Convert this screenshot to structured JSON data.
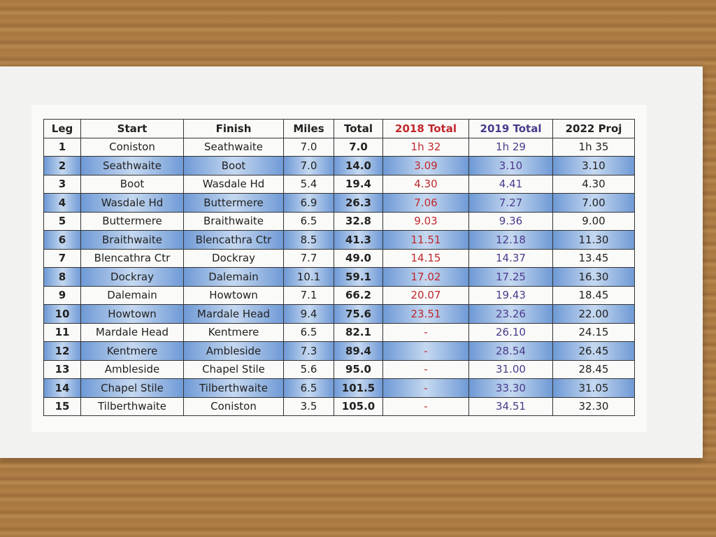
{
  "table": {
    "header": [
      "Leg",
      "Start",
      "Finish",
      "Miles",
      "Total",
      "2018 Total",
      "2019 Total",
      "2022 Proj"
    ],
    "rows": [
      [
        "1",
        "Coniston",
        "Seathwaite",
        "7.0",
        "7.0",
        "1h 32",
        "1h 29",
        "1h 35"
      ],
      [
        "2",
        "Seathwaite",
        "Boot",
        "7.0",
        "14.0",
        "3.09",
        "3.10",
        "3.10"
      ],
      [
        "3",
        "Boot",
        "Wasdale Hd",
        "5.4",
        "19.4",
        "4.30",
        "4.41",
        "4.30"
      ],
      [
        "4",
        "Wasdale Hd",
        "Buttermere",
        "6.9",
        "26.3",
        "7.06",
        "7.27",
        "7.00"
      ],
      [
        "5",
        "Buttermere",
        "Braithwaite",
        "6.5",
        "32.8",
        "9.03",
        "9.36",
        "9.00"
      ],
      [
        "6",
        "Braithwaite",
        "Blencathra Ctr",
        "8.5",
        "41.3",
        "11.51",
        "12.18",
        "11.30"
      ],
      [
        "7",
        "Blencathra Ctr",
        "Dockray",
        "7.7",
        "49.0",
        "14.15",
        "14.37",
        "13.45"
      ],
      [
        "8",
        "Dockray",
        "Dalemain",
        "10.1",
        "59.1",
        "17.02",
        "17.25",
        "16.30"
      ],
      [
        "9",
        "Dalemain",
        "Howtown",
        "7.1",
        "66.2",
        "20.07",
        "19.43",
        "18.45"
      ],
      [
        "10",
        "Howtown",
        "Mardale Head",
        "9.4",
        "75.6",
        "23.51",
        "23.26",
        "22.00"
      ],
      [
        "11",
        "Mardale Head",
        "Kentmere",
        "6.5",
        "82.1",
        "-",
        "26.10",
        "24.15"
      ],
      [
        "12",
        "Kentmere",
        "Ambleside",
        "7.3",
        "89.4",
        "-",
        "28.54",
        "26.45"
      ],
      [
        "13",
        "Ambleside",
        "Chapel Stile",
        "5.6",
        "95.0",
        "-",
        "31.00",
        "28.45"
      ],
      [
        "14",
        "Chapel Stile",
        "Tilberthwaite",
        "6.5",
        "101.5",
        "-",
        "33.30",
        "31.05"
      ],
      [
        "15",
        "Tilberthwaite",
        "Coniston",
        "3.5",
        "105.0",
        "-",
        "34.51",
        "32.30"
      ]
    ]
  }
}
